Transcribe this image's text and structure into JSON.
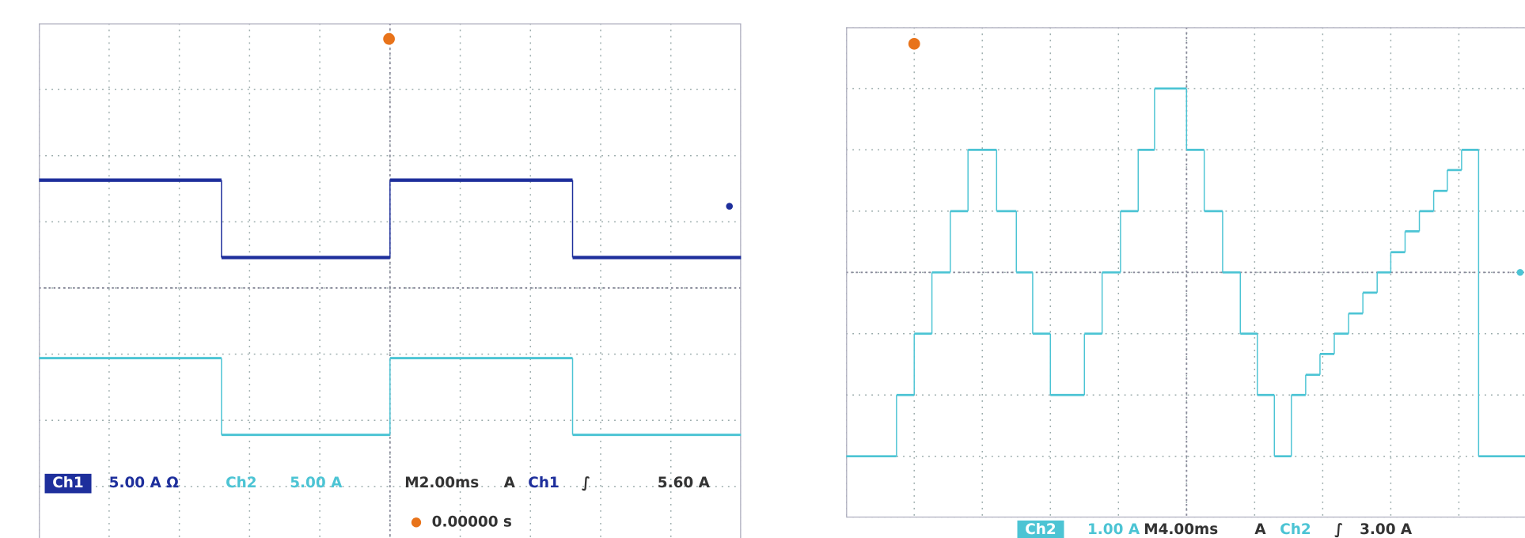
{
  "chart_data": [
    {
      "type": "step",
      "xlim": [
        0,
        10
      ],
      "ylim": [
        -4,
        4
      ],
      "xticks": [
        0,
        1,
        2,
        3,
        4,
        5,
        6,
        7,
        8,
        9,
        10
      ],
      "yticks": [
        -4,
        -3,
        -2,
        -1,
        0,
        1,
        2,
        3,
        4
      ],
      "grid": true,
      "x": [
        0,
        2.6,
        5.0,
        7.6
      ],
      "series": [
        {
          "name": "Ch1",
          "color": "#1e2f9c",
          "scale": "5.00 A Ω",
          "values": [
            1.63,
            0.46,
            1.63,
            0.46
          ]
        },
        {
          "name": "Ch2",
          "color": "#4cc4d4",
          "scale": "5.00 A",
          "values": [
            -1.06,
            -2.22,
            -1.06,
            -2.22
          ]
        }
      ],
      "timebase": "M2.00ms",
      "trigger": {
        "mode": "A",
        "source": "Ch1",
        "slope": "∫",
        "level": "5.60 A"
      },
      "position": "0.00000 s"
    },
    {
      "type": "step",
      "xlim": [
        0,
        10
      ],
      "ylim": [
        -4,
        4
      ],
      "xticks": [
        0,
        1,
        2,
        3,
        4,
        5,
        6,
        7,
        8,
        9,
        10
      ],
      "yticks": [
        -4,
        -3,
        -2,
        -1,
        0,
        1,
        2,
        3,
        4
      ],
      "grid": true,
      "x": [
        0,
        0.74,
        1.0,
        1.26,
        1.53,
        1.79,
        2.21,
        2.5,
        2.74,
        3.0,
        3.5,
        3.76,
        4.03,
        4.29,
        4.53,
        5.0,
        5.26,
        5.53,
        5.79,
        6.04,
        6.29,
        6.54,
        6.75,
        6.96,
        7.17,
        7.38,
        7.59,
        7.8,
        8.0,
        8.21,
        8.42,
        8.63,
        8.83,
        9.04,
        9.29
      ],
      "series": [
        {
          "name": "Ch2",
          "color": "#4cc4d4",
          "scale": "1.00 A",
          "values": [
            -3,
            -2,
            -1,
            0,
            1,
            2,
            1,
            0,
            -1,
            -2,
            -1,
            0,
            1,
            2,
            3,
            2,
            1,
            0,
            -1,
            -2,
            -3,
            -2,
            -1.67,
            -1.33,
            -1,
            -0.67,
            -0.33,
            0,
            0.33,
            0.67,
            1,
            1.33,
            1.67,
            2,
            -3
          ]
        }
      ],
      "timebase": "M4.00ms",
      "trigger": {
        "mode": "A",
        "source": "Ch2",
        "slope": "∫",
        "level": "3.00 A"
      }
    }
  ]
}
